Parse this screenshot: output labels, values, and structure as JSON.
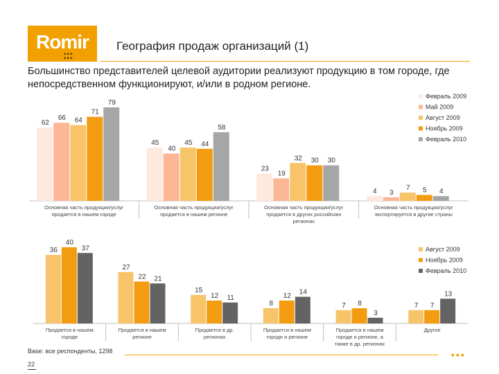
{
  "header": {
    "logo_text": "Romir",
    "title": "География продаж организаций (1)",
    "subtitle": "Большинство представителей целевой аудитории реализуют продукцию в том городе, где непосредственном функционируют, и/или в родном регионе."
  },
  "colors": {
    "accent": "#F2A000",
    "series": [
      "#FDE9DE",
      "#FBB795",
      "#F7C46A",
      "#F39C12",
      "#A6A6A6",
      "#636363"
    ]
  },
  "chart_data": [
    {
      "type": "bar",
      "categories": [
        "Основная часть продукции/услуг продается в нашем городе",
        "Основная часть продукции/услуг продается в нашем регионе",
        "Основная часть продукции/услуг продается в других российских регионах",
        "Основная часть продукции/услуг экспортируется в другие страны"
      ],
      "series": [
        {
          "name": "Февраль 2009",
          "values": [
            62,
            45,
            23,
            4
          ]
        },
        {
          "name": "Май 2009",
          "values": [
            66,
            40,
            19,
            3
          ]
        },
        {
          "name": "Август 2009",
          "values": [
            64,
            45,
            32,
            7
          ]
        },
        {
          "name": "Ноябрь 2009",
          "values": [
            71,
            44,
            30,
            5
          ]
        },
        {
          "name": "Февраль 2010",
          "values": [
            79,
            58,
            30,
            4
          ]
        }
      ],
      "legend": "right",
      "grid": false
    },
    {
      "type": "bar",
      "categories": [
        "Продается в нашем городе",
        "Продается в нашем регионе",
        "Продается в др. регионах",
        "Продается в нашем городе и регионе",
        "Продается в нашем городе и регионе, а также в др. регионах",
        "Другое"
      ],
      "series": [
        {
          "name": "Август 2009",
          "values": [
            36,
            27,
            15,
            8,
            7,
            7
          ]
        },
        {
          "name": "Ноябрь 2009",
          "values": [
            40,
            22,
            12,
            12,
            8,
            7
          ]
        },
        {
          "name": "Февраль 2010",
          "values": [
            37,
            21,
            11,
            14,
            3,
            13
          ]
        }
      ],
      "legend": "right",
      "grid": false
    }
  ],
  "footer": {
    "base": "Base: все респонденты, 1298",
    "page": "22"
  }
}
